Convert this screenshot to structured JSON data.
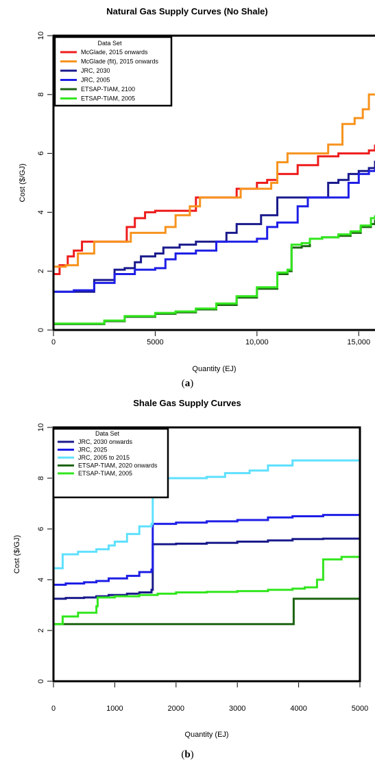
{
  "panel_labels": {
    "a": "a",
    "b": "b"
  },
  "colors": {
    "red": "#ee1c1c",
    "orange": "#f7931e",
    "navy": "#1a1a8c",
    "blue": "#1e1ee6",
    "cyan": "#5ee0ff",
    "dkgreen": "#1e6414",
    "green": "#32e61e"
  },
  "chart_data": [
    {
      "type": "line",
      "title": "Natural Gas Supply Curves (No Shale)",
      "xlabel": "Quantity (EJ)",
      "ylabel": "Cost ($/GJ)",
      "xlim": [
        0,
        15800
      ],
      "ylim": [
        0,
        10
      ],
      "xticks": [
        0,
        5000,
        10000,
        15000
      ],
      "xtick_labels": [
        "0",
        "5000",
        "10,000",
        "15,000"
      ],
      "yticks": [
        0,
        2,
        4,
        6,
        8,
        10
      ],
      "ytick_labels": [
        "0",
        "2",
        "4",
        "6",
        "8",
        "10"
      ],
      "grid": false,
      "legend_title": "Data Set",
      "legend_position": "top-left",
      "series": [
        {
          "name": "McGlade, 2015 onwards",
          "color": "red",
          "x": [
            0,
            300,
            700,
            1000,
            1400,
            3300,
            3600,
            4000,
            4500,
            5000,
            7000,
            7500,
            8000,
            9000,
            10000,
            10500,
            11000,
            12000,
            13000,
            14000,
            14500,
            15000,
            15500,
            15800
          ],
          "y": [
            1.9,
            2.2,
            2.5,
            2.7,
            3.0,
            3.0,
            3.5,
            3.8,
            4.0,
            4.05,
            4.5,
            4.5,
            4.5,
            4.8,
            5.0,
            5.1,
            5.3,
            5.6,
            5.9,
            6.0,
            6.0,
            6.0,
            6.1,
            6.3
          ]
        },
        {
          "name": "McGlade (fit), 2015 onwards",
          "color": "orange",
          "x": [
            0,
            600,
            1200,
            2000,
            3400,
            3800,
            5500,
            6000,
            6700,
            7200,
            8600,
            9200,
            10700,
            11000,
            11500,
            13000,
            13500,
            14200,
            14800,
            15200,
            15500,
            15800
          ],
          "y": [
            2.15,
            2.2,
            2.6,
            3.0,
            3.0,
            3.3,
            3.5,
            3.9,
            4.2,
            4.5,
            4.5,
            4.8,
            5.0,
            5.7,
            6.0,
            6.0,
            6.3,
            7.0,
            7.2,
            7.5,
            8.0,
            8.0
          ]
        },
        {
          "name": "JRC, 2030",
          "color": "navy",
          "x": [
            0,
            1000,
            2000,
            3000,
            3500,
            4000,
            4300,
            5000,
            5400,
            6200,
            7000,
            8500,
            9000,
            10200,
            11000,
            12000,
            12500,
            13500,
            14000,
            14500,
            15000,
            15500,
            15800
          ],
          "y": [
            1.3,
            1.3,
            1.7,
            2.05,
            2.1,
            2.3,
            2.5,
            2.6,
            2.8,
            2.9,
            3.0,
            3.3,
            3.6,
            3.9,
            4.5,
            4.5,
            4.5,
            5.0,
            5.1,
            5.3,
            5.4,
            5.5,
            5.75
          ]
        },
        {
          "name": "JRC, 2005",
          "color": "blue",
          "x": [
            0,
            1000,
            2000,
            3000,
            4000,
            5000,
            5500,
            6000,
            7000,
            8000,
            9000,
            10000,
            10500,
            11000,
            12000,
            12500,
            13000,
            14000,
            14500,
            15000,
            15500,
            15800
          ],
          "y": [
            1.3,
            1.35,
            1.6,
            1.9,
            2.05,
            2.1,
            2.4,
            2.6,
            2.7,
            3.0,
            3.0,
            3.1,
            3.5,
            3.65,
            4.2,
            4.5,
            4.5,
            4.5,
            5.0,
            5.3,
            5.4,
            5.5
          ]
        },
        {
          "name": "ETSAP-TIAM, 2100",
          "color": "dkgreen",
          "x": [
            0,
            1500,
            2500,
            3500,
            5000,
            6000,
            7000,
            8000,
            9000,
            10000,
            11000,
            11500,
            11700,
            12200,
            12600,
            13200,
            14000,
            14600,
            15100,
            15600,
            15800
          ],
          "y": [
            0.2,
            0.2,
            0.3,
            0.45,
            0.55,
            0.6,
            0.7,
            0.85,
            1.1,
            1.4,
            1.9,
            2.0,
            2.8,
            2.85,
            3.1,
            3.15,
            3.2,
            3.3,
            3.5,
            3.6,
            3.75
          ]
        },
        {
          "name": "ETSAP-TIAM, 2005",
          "color": "green",
          "x": [
            0,
            1500,
            2500,
            3500,
            5000,
            6000,
            7000,
            8000,
            9000,
            10000,
            11000,
            11500,
            11700,
            12200,
            12600,
            13200,
            14000,
            14600,
            15100,
            15600,
            15800
          ],
          "y": [
            0.22,
            0.22,
            0.32,
            0.47,
            0.58,
            0.63,
            0.73,
            0.9,
            1.15,
            1.45,
            1.95,
            2.05,
            2.9,
            2.95,
            3.1,
            3.15,
            3.25,
            3.35,
            3.55,
            3.8,
            3.9
          ]
        }
      ]
    },
    {
      "type": "line",
      "title": "Shale Gas Supply Curves",
      "xlabel": "Quantity (EJ)",
      "ylabel": "Cost ($/GJ)",
      "xlim": [
        0,
        5000
      ],
      "ylim": [
        0,
        10
      ],
      "xticks": [
        0,
        1000,
        2000,
        3000,
        4000,
        5000
      ],
      "xtick_labels": [
        "0",
        "1000",
        "2000",
        "3000",
        "4000",
        "5000"
      ],
      "yticks": [
        0,
        2,
        4,
        6,
        8,
        10
      ],
      "ytick_labels": [
        "0",
        "2",
        "4",
        "6",
        "8",
        "10"
      ],
      "grid": false,
      "legend_title": "Data Set",
      "legend_position": "top-left",
      "series": [
        {
          "name": "JRC, 2030 onwards",
          "color": "navy",
          "x": [
            0,
            200,
            500,
            700,
            900,
            1200,
            1400,
            1600,
            1620,
            2000,
            2500,
            3000,
            3500,
            3900,
            4400,
            5000
          ],
          "y": [
            3.25,
            3.28,
            3.3,
            3.35,
            3.4,
            3.45,
            3.5,
            3.6,
            5.4,
            5.42,
            5.45,
            5.5,
            5.55,
            5.6,
            5.62,
            5.62
          ]
        },
        {
          "name": "JRC, 2025",
          "color": "blue",
          "x": [
            0,
            200,
            500,
            700,
            900,
            1200,
            1400,
            1600,
            1620,
            2000,
            2500,
            3000,
            3500,
            3900,
            4400,
            5000
          ],
          "y": [
            3.8,
            3.85,
            3.9,
            3.95,
            4.05,
            4.15,
            4.3,
            4.4,
            6.2,
            6.25,
            6.3,
            6.35,
            6.45,
            6.5,
            6.55,
            6.55
          ]
        },
        {
          "name": "JRC, 2005 to 2015",
          "color": "cyan",
          "x": [
            0,
            150,
            400,
            700,
            900,
            1000,
            1200,
            1400,
            1600,
            1620,
            2000,
            2500,
            2800,
            3200,
            3500,
            3900,
            4400,
            5000
          ],
          "y": [
            4.45,
            5.0,
            5.1,
            5.2,
            5.35,
            5.5,
            5.8,
            6.1,
            6.2,
            8.0,
            8.0,
            8.05,
            8.2,
            8.3,
            8.5,
            8.7,
            8.7,
            8.7
          ]
        },
        {
          "name": "ETSAP-TIAM, 2020 onwards",
          "color": "dkgreen",
          "x": [
            0,
            3900,
            3920,
            5000
          ],
          "y": [
            2.25,
            2.25,
            3.25,
            3.25
          ]
        },
        {
          "name": "ETSAP-TIAM, 2005",
          "color": "green",
          "x": [
            0,
            100,
            150,
            400,
            700,
            720,
            1000,
            1400,
            1700,
            2000,
            2500,
            3000,
            3500,
            3900,
            4100,
            4300,
            4400,
            4700,
            5000
          ],
          "y": [
            2.25,
            2.25,
            2.55,
            2.7,
            2.95,
            3.3,
            3.35,
            3.4,
            3.45,
            3.5,
            3.52,
            3.55,
            3.6,
            3.65,
            3.7,
            4.0,
            4.8,
            4.9,
            5.05
          ]
        }
      ]
    }
  ]
}
